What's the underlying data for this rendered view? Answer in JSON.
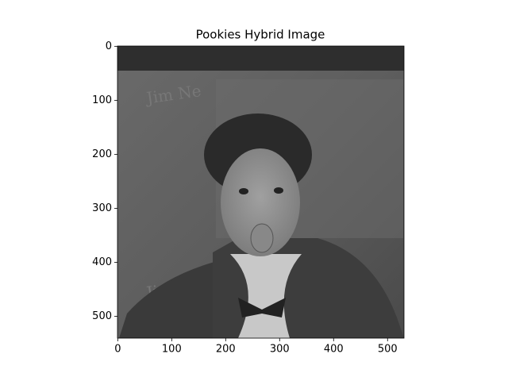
{
  "chart_data": {
    "type": "image",
    "title": "Pookies Hybrid Image",
    "xlim": [
      -0.5,
      530.5
    ],
    "ylim": [
      540.5,
      -0.5
    ],
    "xticks": [
      0,
      100,
      200,
      300,
      400,
      500
    ],
    "yticks": [
      0,
      100,
      200,
      300,
      400,
      500
    ],
    "colormap": "gray"
  }
}
